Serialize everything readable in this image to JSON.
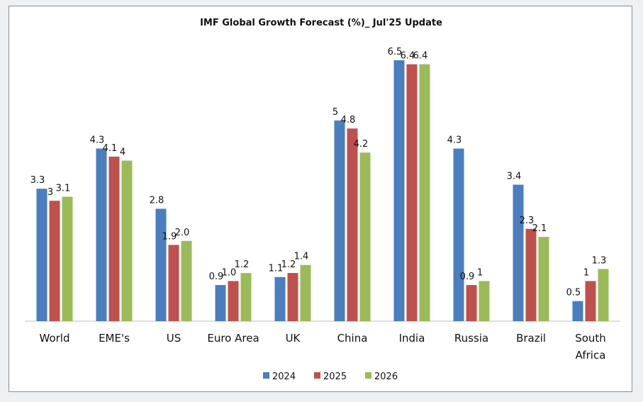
{
  "chart_data": {
    "type": "bar",
    "title": "IMF Global Growth Forecast (%)_ Jul'25 Update",
    "xlabel": "",
    "ylabel": "",
    "ylim": [
      0,
      7
    ],
    "grid": false,
    "legend_position": "bottom",
    "categories": [
      "World",
      "EME's",
      "US",
      "Euro Area",
      "UK",
      "China",
      "India",
      "Russia",
      "Brazil",
      "South Africa"
    ],
    "series": [
      {
        "name": "2024",
        "color": "#4a7ebf",
        "values": [
          3.3,
          4.3,
          2.8,
          0.9,
          1.1,
          5,
          6.5,
          4.3,
          3.4,
          0.5
        ],
        "labels": [
          "3.3",
          "4.3",
          "2.8",
          "0.9",
          "1.1",
          "5",
          "6.5",
          "4.3",
          "3.4",
          "0.5"
        ]
      },
      {
        "name": "2025",
        "color": "#c0504d",
        "values": [
          3,
          4.1,
          1.9,
          1.0,
          1.2,
          4.8,
          6.4,
          0.9,
          2.3,
          1
        ],
        "labels": [
          "3",
          "4.1",
          "1.9",
          "1.0",
          "1.2",
          "4.8",
          "6.4",
          "0.9",
          "2.3",
          "1"
        ]
      },
      {
        "name": "2026",
        "color": "#9bbb59",
        "values": [
          3.1,
          4,
          2.0,
          1.2,
          1.4,
          4.2,
          6.4,
          1,
          2.1,
          1.3
        ],
        "labels": [
          "3.1",
          "4",
          "2.0",
          "1.2",
          "1.4",
          "4.2",
          "6.4",
          "1",
          "2.1",
          "1.3"
        ]
      }
    ]
  }
}
